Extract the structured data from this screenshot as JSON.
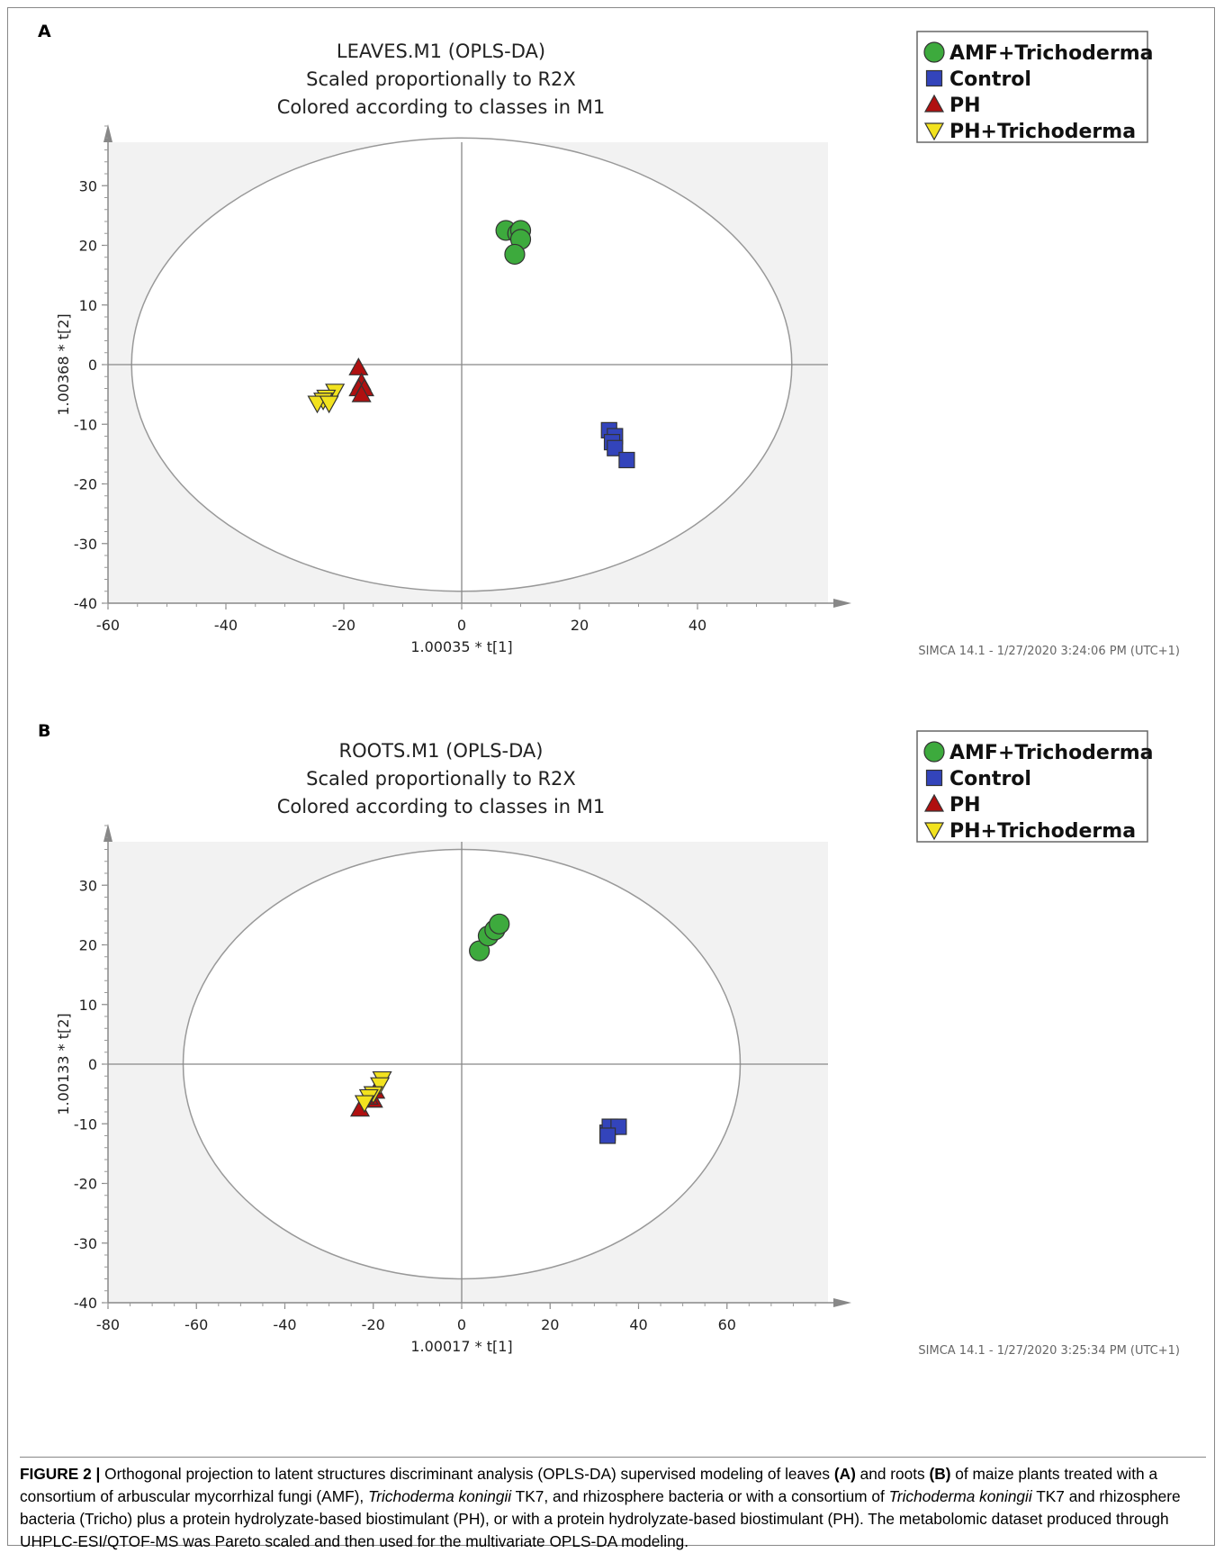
{
  "colors": {
    "AMF+Trichoderma": "#3daa3d",
    "Control": "#3344bb",
    "PH": "#b01010",
    "PH+Trichoderma": "#f2e21e",
    "plot_bg": "#f2f2f2"
  },
  "legend": [
    {
      "name": "AMF+Trichoderma",
      "shape": "circle"
    },
    {
      "name": "Control",
      "shape": "square"
    },
    {
      "name": "PH",
      "shape": "triangle-up"
    },
    {
      "name": "PH+Trichoderma",
      "shape": "triangle-down"
    }
  ],
  "chart_data": [
    {
      "panel": "A",
      "type": "scatter",
      "title_lines": [
        "LEAVES.M1 (OPLS-DA)",
        "Scaled proportionally to R2X",
        "Colored according to classes in M1"
      ],
      "xlabel": "1.00035 * t[1]",
      "ylabel": "1.00368 * t[2]",
      "xlim": [
        -60,
        60
      ],
      "ylim": [
        -40,
        40
      ],
      "xticks": [
        -60,
        -40,
        -20,
        0,
        20,
        40
      ],
      "yticks": [
        -40,
        -30,
        -20,
        -10,
        0,
        10,
        20,
        30
      ],
      "ellipse": {
        "rx": 56,
        "ry": 38
      },
      "footer": "SIMCA 14.1 - 1/27/2020 3:24:06 PM (UTC+1)",
      "series": [
        {
          "name": "AMF+Trichoderma",
          "shape": "circle",
          "points": [
            [
              7.5,
              22.5
            ],
            [
              9.5,
              22
            ],
            [
              10,
              22.5
            ],
            [
              10,
              21
            ],
            [
              9,
              18.5
            ]
          ]
        },
        {
          "name": "Control",
          "shape": "square",
          "points": [
            [
              25,
              -11
            ],
            [
              26,
              -12
            ],
            [
              25.5,
              -13
            ],
            [
              26,
              -14
            ],
            [
              28,
              -16
            ]
          ]
        },
        {
          "name": "PH",
          "shape": "triangle-up",
          "points": [
            [
              -17.5,
              -0.5
            ],
            [
              -17,
              -3
            ],
            [
              -17.5,
              -4
            ],
            [
              -16.5,
              -4
            ],
            [
              -17,
              -5
            ]
          ]
        },
        {
          "name": "PH+Trichoderma",
          "shape": "triangle-down",
          "points": [
            [
              -21.5,
              -4.5
            ],
            [
              -23,
              -5.5
            ],
            [
              -23.5,
              -6
            ],
            [
              -24.5,
              -6.5
            ],
            [
              -22.5,
              -6.5
            ]
          ]
        }
      ]
    },
    {
      "panel": "B",
      "type": "scatter",
      "title_lines": [
        "ROOTS.M1 (OPLS-DA)",
        "Scaled proportionally to R2X",
        "Colored according to classes in M1"
      ],
      "xlabel": "1.00017 * t[1]",
      "ylabel": "1.00133 * t[2]",
      "xlim": [
        -80,
        80
      ],
      "ylim": [
        -40,
        40
      ],
      "xticks": [
        -80,
        -60,
        -40,
        -20,
        0,
        20,
        40,
        60
      ],
      "yticks": [
        -40,
        -30,
        -20,
        -10,
        0,
        10,
        20,
        30
      ],
      "ellipse": {
        "rx": 63,
        "ry": 36
      },
      "footer": "SIMCA 14.1 - 1/27/2020 3:25:34 PM (UTC+1)",
      "series": [
        {
          "name": "AMF+Trichoderma",
          "shape": "circle",
          "points": [
            [
              4,
              19
            ],
            [
              6,
              21.5
            ],
            [
              7.5,
              22.5
            ],
            [
              8.5,
              23.5
            ]
          ]
        },
        {
          "name": "Control",
          "shape": "square",
          "points": [
            [
              33,
              -11.5
            ],
            [
              33.5,
              -10.5
            ],
            [
              35.5,
              -10.5
            ],
            [
              33,
              -12
            ]
          ]
        },
        {
          "name": "PH",
          "shape": "triangle-up",
          "points": [
            [
              -23,
              -7.5
            ],
            [
              -20,
              -6
            ],
            [
              -21,
              -5.5
            ],
            [
              -19.5,
              -4.5
            ]
          ]
        },
        {
          "name": "PH+Trichoderma",
          "shape": "triangle-down",
          "points": [
            [
              -18,
              -2.5
            ],
            [
              -18.5,
              -3.5
            ],
            [
              -20,
              -5
            ],
            [
              -21,
              -5.5
            ],
            [
              -22,
              -6.5
            ]
          ]
        }
      ]
    }
  ],
  "caption": {
    "label": "FIGURE 2 |",
    "t1": " Orthogonal projection to latent structures discriminant analysis (OPLS-DA) supervised modeling of leaves ",
    "a": "(A)",
    "t2": " and roots ",
    "b": "(B)",
    "t3": " of maize plants treated with a consortium of arbuscular mycorrhizal fungi (AMF), ",
    "species1": "Trichoderma koningii",
    "t4": " TK7, and rhizosphere bacteria or with a consortium of ",
    "species2": "Trichoderma koningii",
    "t5": " TK7 and rhizosphere bacteria (Tricho) plus a protein hydrolyzate-based biostimulant (PH), or with a protein hydrolyzate-based biostimulant (PH). The metabolomic dataset produced through UHPLC-ESI/QTOF-MS was Pareto scaled and then used for the multivariate OPLS-DA modeling."
  }
}
